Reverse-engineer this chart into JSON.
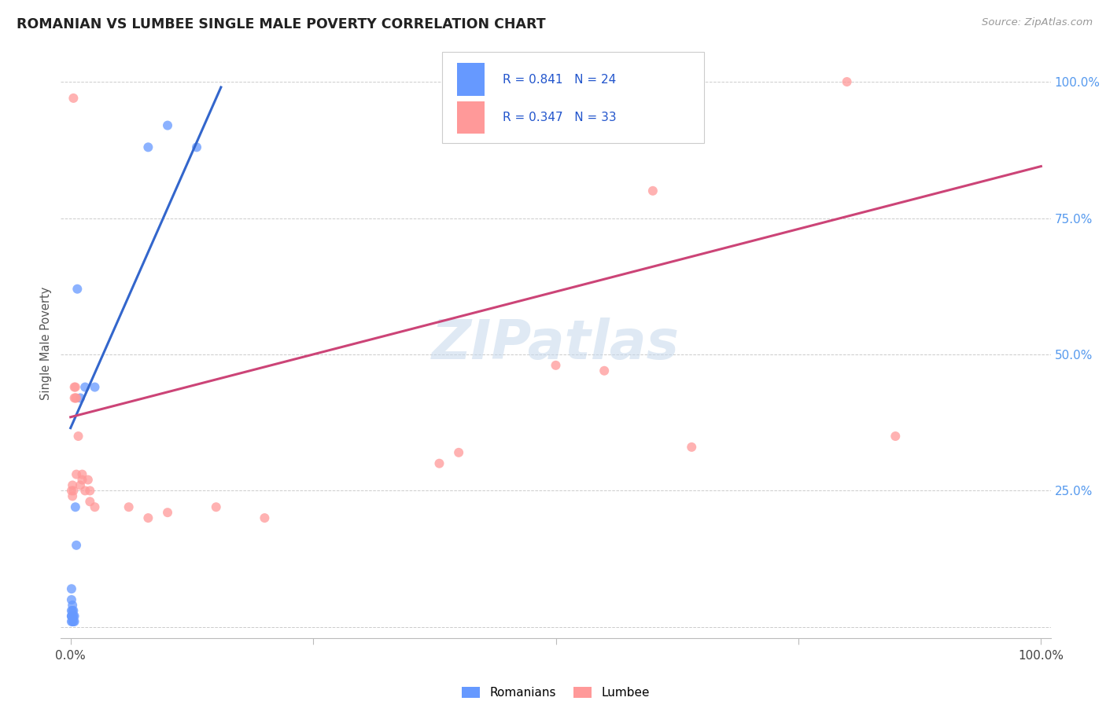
{
  "title": "ROMANIAN VS LUMBEE SINGLE MALE POVERTY CORRELATION CHART",
  "source": "Source: ZipAtlas.com",
  "ylabel": "Single Male Poverty",
  "r_romanian": 0.841,
  "n_romanian": 24,
  "r_lumbee": 0.347,
  "n_lumbee": 33,
  "romanian_color": "#6699FF",
  "lumbee_color": "#FF9999",
  "romanian_line_color": "#3366CC",
  "lumbee_line_color": "#CC4477",
  "background_color": "#FFFFFF",
  "romanian_points": [
    [
      0.001,
      0.03
    ],
    [
      0.001,
      0.05
    ],
    [
      0.001,
      0.07
    ],
    [
      0.001,
      0.02
    ],
    [
      0.001,
      0.01
    ],
    [
      0.001,
      0.02
    ],
    [
      0.002,
      0.03
    ],
    [
      0.002,
      0.02
    ],
    [
      0.002,
      0.04
    ],
    [
      0.002,
      0.01
    ],
    [
      0.003,
      0.02
    ],
    [
      0.003,
      0.03
    ],
    [
      0.003,
      0.01
    ],
    [
      0.004,
      0.02
    ],
    [
      0.004,
      0.01
    ],
    [
      0.005,
      0.22
    ],
    [
      0.006,
      0.15
    ],
    [
      0.007,
      0.62
    ],
    [
      0.01,
      0.42
    ],
    [
      0.015,
      0.44
    ],
    [
      0.025,
      0.44
    ],
    [
      0.08,
      0.88
    ],
    [
      0.1,
      0.92
    ],
    [
      0.13,
      0.88
    ]
  ],
  "lumbee_points": [
    [
      0.001,
      0.25
    ],
    [
      0.002,
      0.24
    ],
    [
      0.002,
      0.26
    ],
    [
      0.003,
      0.25
    ],
    [
      0.003,
      0.97
    ],
    [
      0.004,
      0.42
    ],
    [
      0.004,
      0.44
    ],
    [
      0.005,
      0.42
    ],
    [
      0.005,
      0.44
    ],
    [
      0.006,
      0.42
    ],
    [
      0.006,
      0.28
    ],
    [
      0.008,
      0.35
    ],
    [
      0.01,
      0.26
    ],
    [
      0.012,
      0.27
    ],
    [
      0.012,
      0.28
    ],
    [
      0.015,
      0.25
    ],
    [
      0.018,
      0.27
    ],
    [
      0.02,
      0.25
    ],
    [
      0.02,
      0.23
    ],
    [
      0.025,
      0.22
    ],
    [
      0.06,
      0.22
    ],
    [
      0.08,
      0.2
    ],
    [
      0.1,
      0.21
    ],
    [
      0.15,
      0.22
    ],
    [
      0.2,
      0.2
    ],
    [
      0.38,
      0.3
    ],
    [
      0.4,
      0.32
    ],
    [
      0.5,
      0.48
    ],
    [
      0.55,
      0.47
    ],
    [
      0.6,
      0.8
    ],
    [
      0.64,
      0.33
    ],
    [
      0.8,
      1.0
    ],
    [
      0.85,
      0.35
    ]
  ],
  "xlim": [
    0.0,
    1.0
  ],
  "ylim": [
    0.0,
    1.0
  ],
  "romanian_line_x": [
    0.0,
    0.155
  ],
  "lumbee_line_x": [
    0.0,
    1.0
  ],
  "romanian_line_y_start": 0.365,
  "romanian_line_y_end": 0.99,
  "lumbee_line_y_start": 0.385,
  "lumbee_line_y_end": 0.845
}
